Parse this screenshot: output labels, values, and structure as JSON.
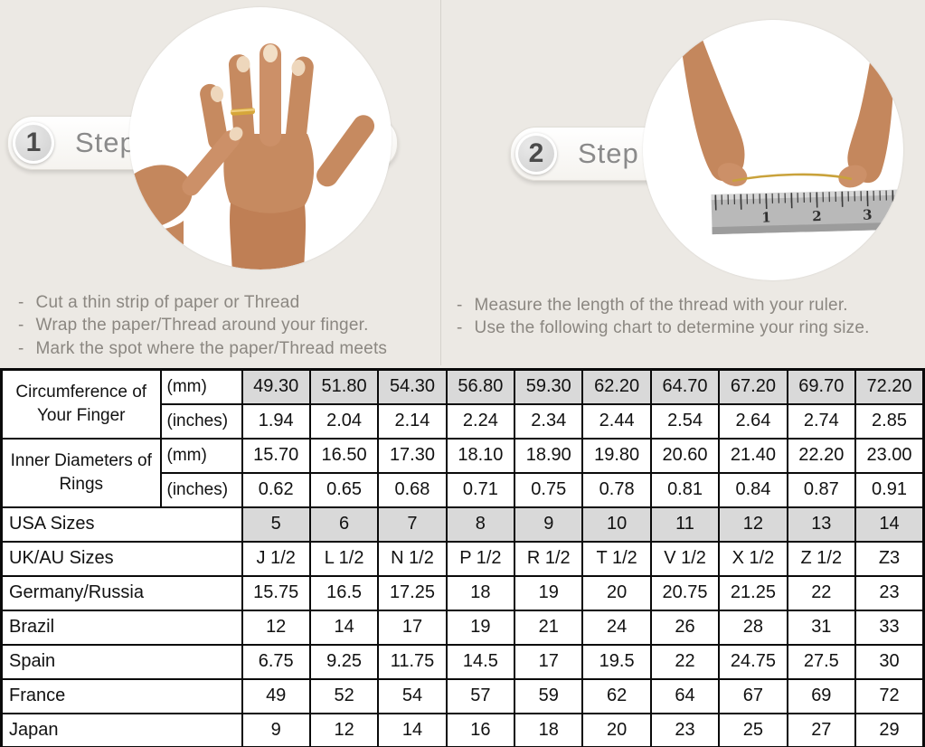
{
  "page": {
    "background_color": "#ECE9E4",
    "shaded_cell_color": "#D9D9D9"
  },
  "steps": [
    {
      "number": "1",
      "label": "Step",
      "photo": "hand-with-ring-and-thread-photo",
      "bullets": [
        "Cut a thin strip of paper or Thread",
        "Wrap the paper/Thread around your finger.",
        "Mark the spot where the paper/Thread meets"
      ]
    },
    {
      "number": "2",
      "label": "Step",
      "photo": "measuring-thread-with-ruler-photo",
      "ruler_numbers": [
        "1",
        "2",
        "3"
      ],
      "bullets": [
        "Measure the length of the thread with your ruler.",
        "Use the following chart to determine your ring size."
      ]
    }
  ],
  "size_chart": {
    "groups": [
      {
        "label": "Circumference of Your Finger",
        "rows": [
          {
            "unit": "(mm)",
            "shaded": true,
            "values": [
              "49.30",
              "51.80",
              "54.30",
              "56.80",
              "59.30",
              "62.20",
              "64.70",
              "67.20",
              "69.70",
              "72.20"
            ]
          },
          {
            "unit": "(inches)",
            "shaded": false,
            "values": [
              "1.94",
              "2.04",
              "2.14",
              "2.24",
              "2.34",
              "2.44",
              "2.54",
              "2.64",
              "2.74",
              "2.85"
            ]
          }
        ]
      },
      {
        "label": "Inner Diameters of Rings",
        "rows": [
          {
            "unit": "(mm)",
            "shaded": false,
            "values": [
              "15.70",
              "16.50",
              "17.30",
              "18.10",
              "18.90",
              "19.80",
              "20.60",
              "21.40",
              "22.20",
              "23.00"
            ]
          },
          {
            "unit": "(inches)",
            "shaded": false,
            "values": [
              "0.62",
              "0.65",
              "0.68",
              "0.71",
              "0.75",
              "0.78",
              "0.81",
              "0.84",
              "0.87",
              "0.91"
            ]
          }
        ]
      }
    ],
    "region_rows": [
      {
        "label": "USA Sizes",
        "shaded": true,
        "values": [
          "5",
          "6",
          "7",
          "8",
          "9",
          "10",
          "11",
          "12",
          "13",
          "14"
        ]
      },
      {
        "label": "UK/AU Sizes",
        "shaded": false,
        "values": [
          "J 1/2",
          "L 1/2",
          "N 1/2",
          "P 1/2",
          "R 1/2",
          "T 1/2",
          "V 1/2",
          "X 1/2",
          "Z 1/2",
          "Z3"
        ]
      },
      {
        "label": "Germany/Russia",
        "shaded": false,
        "values": [
          "15.75",
          "16.5",
          "17.25",
          "18",
          "19",
          "20",
          "20.75",
          "21.25",
          "22",
          "23"
        ]
      },
      {
        "label": "Brazil",
        "shaded": false,
        "values": [
          "12",
          "14",
          "17",
          "19",
          "21",
          "24",
          "26",
          "28",
          "31",
          "33"
        ]
      },
      {
        "label": "Spain",
        "shaded": false,
        "values": [
          "6.75",
          "9.25",
          "11.75",
          "14.5",
          "17",
          "19.5",
          "22",
          "24.75",
          "27.5",
          "30"
        ]
      },
      {
        "label": "France",
        "shaded": false,
        "values": [
          "49",
          "52",
          "54",
          "57",
          "59",
          "62",
          "64",
          "67",
          "69",
          "72"
        ]
      },
      {
        "label": "Japan",
        "shaded": false,
        "values": [
          "9",
          "12",
          "14",
          "16",
          "18",
          "20",
          "23",
          "25",
          "27",
          "29"
        ]
      }
    ]
  }
}
